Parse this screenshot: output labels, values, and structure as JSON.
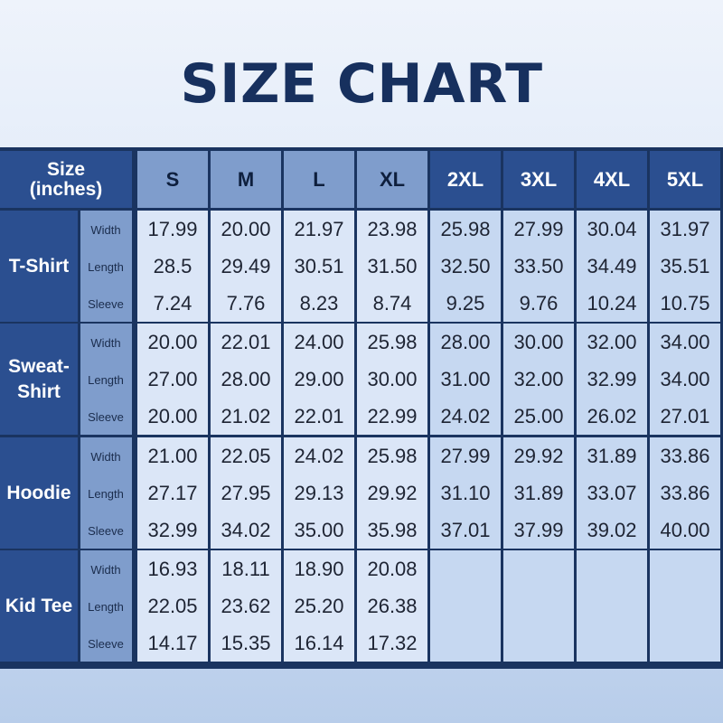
{
  "title": "SIZE CHART",
  "corner": {
    "line1": "Size",
    "line2": "(inches)"
  },
  "sizes": [
    "S",
    "M",
    "L",
    "XL",
    "2XL",
    "3XL",
    "4XL",
    "5XL"
  ],
  "measurements": [
    "Width",
    "Length",
    "Sleeve"
  ],
  "groups": [
    {
      "product_lines": [
        "T-Shirt"
      ],
      "rows": [
        [
          "17.99",
          "20.00",
          "21.97",
          "23.98",
          "25.98",
          "27.99",
          "30.04",
          "31.97"
        ],
        [
          "28.5",
          "29.49",
          "30.51",
          "31.50",
          "32.50",
          "33.50",
          "34.49",
          "35.51"
        ],
        [
          "7.24",
          "7.76",
          "8.23",
          "8.74",
          "9.25",
          "9.76",
          "10.24",
          "10.75"
        ]
      ]
    },
    {
      "product_lines": [
        "Sweat-",
        "Shirt"
      ],
      "rows": [
        [
          "20.00",
          "22.01",
          "24.00",
          "25.98",
          "28.00",
          "30.00",
          "32.00",
          "34.00"
        ],
        [
          "27.00",
          "28.00",
          "29.00",
          "30.00",
          "31.00",
          "32.00",
          "32.99",
          "34.00"
        ],
        [
          "20.00",
          "21.02",
          "22.01",
          "22.99",
          "24.02",
          "25.00",
          "26.02",
          "27.01"
        ]
      ]
    },
    {
      "product_lines": [
        "Hoodie"
      ],
      "rows": [
        [
          "21.00",
          "22.05",
          "24.02",
          "25.98",
          "27.99",
          "29.92",
          "31.89",
          "33.86"
        ],
        [
          "27.17",
          "27.95",
          "29.13",
          "29.92",
          "31.10",
          "31.89",
          "33.07",
          "33.86"
        ],
        [
          "32.99",
          "34.02",
          "35.00",
          "35.98",
          "37.01",
          "37.99",
          "39.02",
          "40.00"
        ]
      ]
    },
    {
      "product_lines": [
        "Kid Tee"
      ],
      "rows": [
        [
          "16.93",
          "18.11",
          "18.90",
          "20.08",
          "",
          "",
          "",
          ""
        ],
        [
          "22.05",
          "23.62",
          "25.20",
          "26.38",
          "",
          "",
          "",
          ""
        ],
        [
          "14.17",
          "15.35",
          "16.14",
          "17.32",
          "",
          "",
          "",
          ""
        ]
      ]
    }
  ],
  "colors": {
    "title": "#17305e",
    "dark_blue": "#2b4f90",
    "mid_blue": "#7f9dcc",
    "light_cell": "#dbe6f7",
    "lighter_cell": "#c6d8f1",
    "grid_line": "#1a3460"
  }
}
